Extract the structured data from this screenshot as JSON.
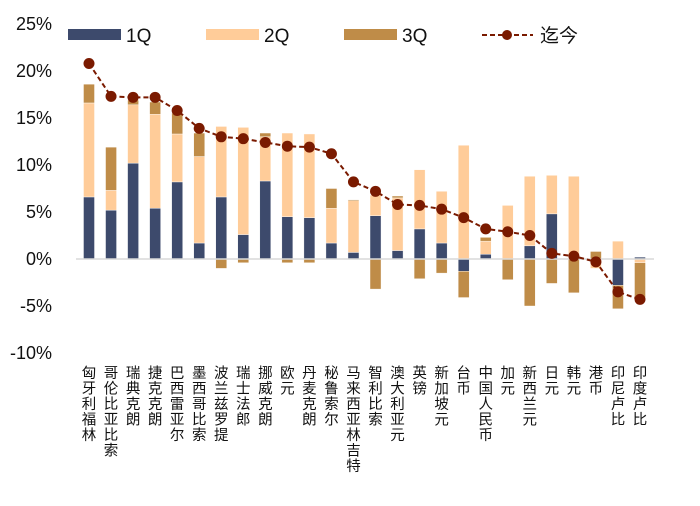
{
  "chart_data": {
    "type": "bar",
    "stacked": true,
    "title": "",
    "xlabel": "",
    "ylabel": "",
    "ylim": [
      -10,
      25
    ],
    "yticks": [
      "-10%",
      "-5%",
      "0%",
      "5%",
      "10%",
      "15%",
      "20%",
      "25%"
    ],
    "ytick_values": [
      -10,
      -5,
      0,
      5,
      10,
      15,
      20,
      25
    ],
    "grid": false,
    "legend_position": "top",
    "categories": [
      "匈牙利福林",
      "哥伦比亚比索",
      "瑞典克朗",
      "捷克克朗",
      "巴西雷亚尔",
      "墨西哥比索",
      "波兰兹罗提",
      "瑞士法郎",
      "挪威克朗",
      "欧元",
      "丹麦克朗",
      "秘鲁索尔",
      "马来西亚林吉特",
      "智利比索",
      "澳大利亚元",
      "英镑",
      "新加坡元",
      "台币",
      "中国人民币",
      "加元",
      "新西兰元",
      "日元",
      "韩元",
      "港币",
      "印尼卢比",
      "印度卢比"
    ],
    "series": [
      {
        "name": "1Q",
        "kind": "bar",
        "color": "#3d4a6c",
        "values": [
          6.6,
          5.2,
          10.2,
          5.4,
          8.2,
          1.7,
          6.6,
          2.6,
          8.3,
          4.5,
          4.4,
          1.7,
          0.7,
          4.6,
          0.9,
          3.2,
          1.7,
          -1.3,
          0.5,
          0.0,
          1.4,
          4.8,
          0.0,
          -0.1,
          -2.8,
          0.2
        ]
      },
      {
        "name": "2Q",
        "kind": "bar",
        "color": "#ffcc99",
        "values": [
          10.0,
          2.1,
          6.2,
          10.0,
          5.1,
          9.2,
          7.5,
          11.4,
          4.7,
          8.9,
          8.9,
          3.7,
          5.5,
          2.2,
          5.6,
          6.3,
          5.5,
          12.1,
          1.4,
          5.7,
          7.4,
          4.1,
          8.8,
          -0.9,
          1.9,
          -0.4
        ]
      },
      {
        "name": "3Q",
        "kind": "bar",
        "color": "#bf8c48",
        "values": [
          2.0,
          4.6,
          0.5,
          1.3,
          2.2,
          2.5,
          -1.0,
          -0.4,
          0.4,
          -0.4,
          -0.4,
          2.1,
          0.1,
          -3.2,
          0.2,
          -2.1,
          -1.5,
          -2.8,
          0.4,
          -2.2,
          -5.0,
          -2.6,
          -3.6,
          0.8,
          -2.5,
          -3.7
        ]
      },
      {
        "name": "迄今",
        "kind": "line",
        "color": "#7a1a00",
        "dashed": true,
        "marker": "circle",
        "values": [
          20.8,
          17.3,
          17.2,
          17.2,
          15.8,
          13.9,
          13.0,
          12.8,
          12.4,
          12.0,
          11.9,
          11.2,
          8.2,
          7.2,
          5.8,
          5.7,
          5.3,
          4.4,
          3.2,
          2.9,
          2.5,
          0.6,
          0.3,
          -0.3,
          -3.5,
          -4.3
        ]
      }
    ]
  }
}
